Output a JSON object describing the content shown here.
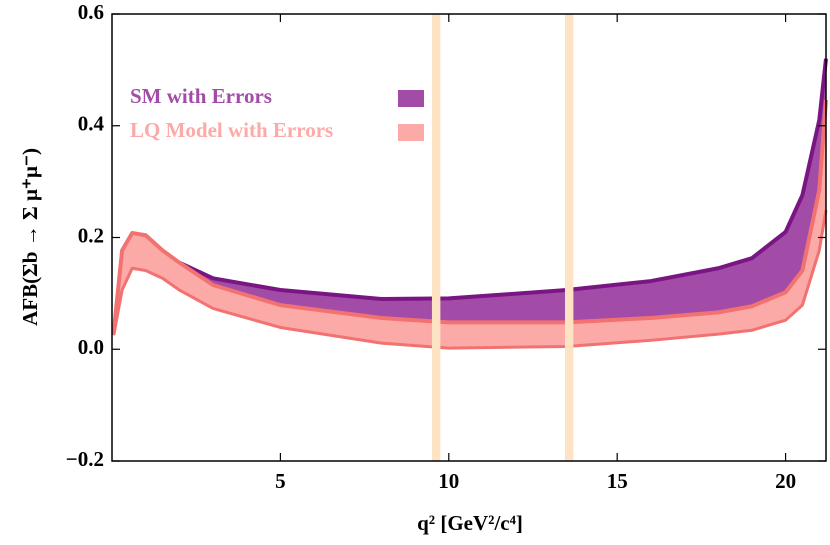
{
  "chart_data": {
    "type": "band",
    "x_label": "q² [GeV²/c⁴]",
    "y_label": "AFB(Σb → Σ μ⁺μ⁻)",
    "x": [
      0.05,
      0.3,
      0.6,
      1,
      1.5,
      2,
      3,
      5,
      8,
      10,
      13.5,
      16,
      18,
      19,
      20,
      20.5,
      21,
      21.2
    ],
    "series": [
      {
        "name": "SM with Errors",
        "color": "#a24ca8",
        "edge_color": "#7a1683",
        "upper": [
          0.03,
          0.12,
          0.15,
          0.16,
          0.158,
          0.155,
          0.127,
          0.106,
          0.09,
          0.091,
          0.106,
          0.122,
          0.145,
          0.163,
          0.21,
          0.276,
          0.41,
          0.52
        ],
        "lower": [
          0.03,
          0.12,
          0.15,
          0.16,
          0.158,
          0.155,
          0.115,
          0.079,
          0.056,
          0.048,
          0.048,
          0.056,
          0.066,
          0.077,
          0.102,
          0.141,
          0.285,
          0.446
        ]
      },
      {
        "name": "LQ Model with Errors",
        "color": "#fbaaa8",
        "edge_color": "#f27272",
        "upper": [
          0.03,
          0.177,
          0.208,
          0.204,
          0.177,
          0.155,
          0.115,
          0.079,
          0.056,
          0.048,
          0.048,
          0.056,
          0.066,
          0.077,
          0.102,
          0.141,
          0.285,
          0.446
        ],
        "lower": [
          0.025,
          0.106,
          0.145,
          0.141,
          0.127,
          0.106,
          0.073,
          0.039,
          0.011,
          0.002,
          0.005,
          0.016,
          0.027,
          0.034,
          0.052,
          0.079,
          0.177,
          0.249
        ]
      }
    ],
    "shaded_regions": [
      [
        9.5,
        9.75
      ],
      [
        13.45,
        13.7
      ]
    ],
    "shaded_color": "#fde2c4",
    "xlim": [
      0,
      21.2
    ],
    "xticks": [
      5,
      10,
      15,
      20
    ],
    "ylim": [
      -0.2,
      0.6
    ],
    "yticks": [
      {
        "value": -0.2,
        "label": "−0.2"
      },
      {
        "value": 0,
        "label": "0.0"
      },
      0.2,
      0.4,
      0.6
    ]
  }
}
